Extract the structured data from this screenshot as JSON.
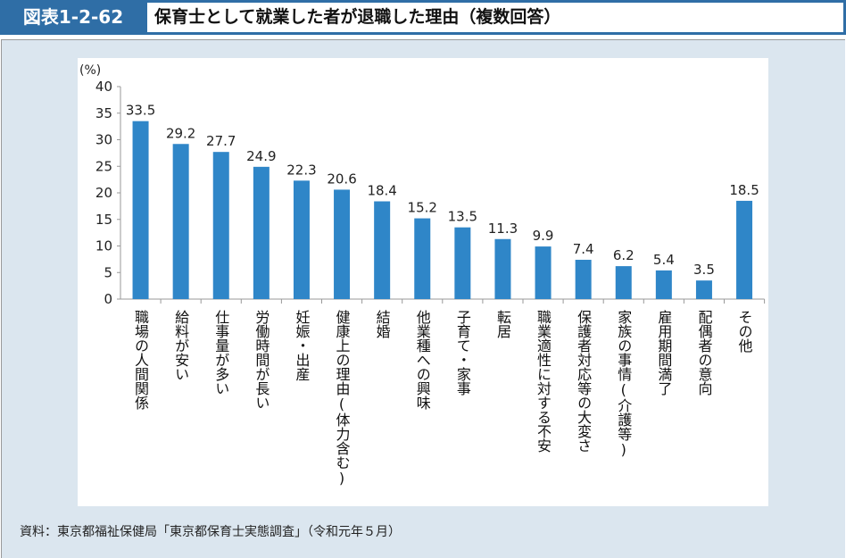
{
  "header": {
    "label": "図表1-2-62",
    "title": "保育士として就業した者が退職した理由（複数回答）"
  },
  "source": "資料：東京都福祉保健局「東京都保育士実態調査」（令和元年５月）",
  "chart_data": {
    "type": "bar",
    "ylabel": "(%)",
    "ylim": [
      0,
      40
    ],
    "yticks": [
      0,
      5,
      10,
      15,
      20,
      25,
      30,
      35,
      40
    ],
    "grid": false,
    "bar_color": "#2f86c8",
    "categories": [
      "職場の人間関係",
      "給料が安い",
      "仕事量が多い",
      "労働時間が長い",
      "妊娠・出産",
      "健康上の理由(体力含む)",
      "結婚",
      "他業種への興味",
      "子育て・家事",
      "転居",
      "職業適性に対する不安",
      "保護者対応等の大変さ",
      "家族の事情(介護等)",
      "雇用期間満了",
      "配偶者の意向",
      "その他"
    ],
    "values": [
      33.5,
      29.2,
      27.7,
      24.9,
      22.3,
      20.6,
      18.4,
      15.2,
      13.5,
      11.3,
      9.9,
      7.4,
      6.2,
      5.4,
      3.5,
      18.5
    ]
  }
}
